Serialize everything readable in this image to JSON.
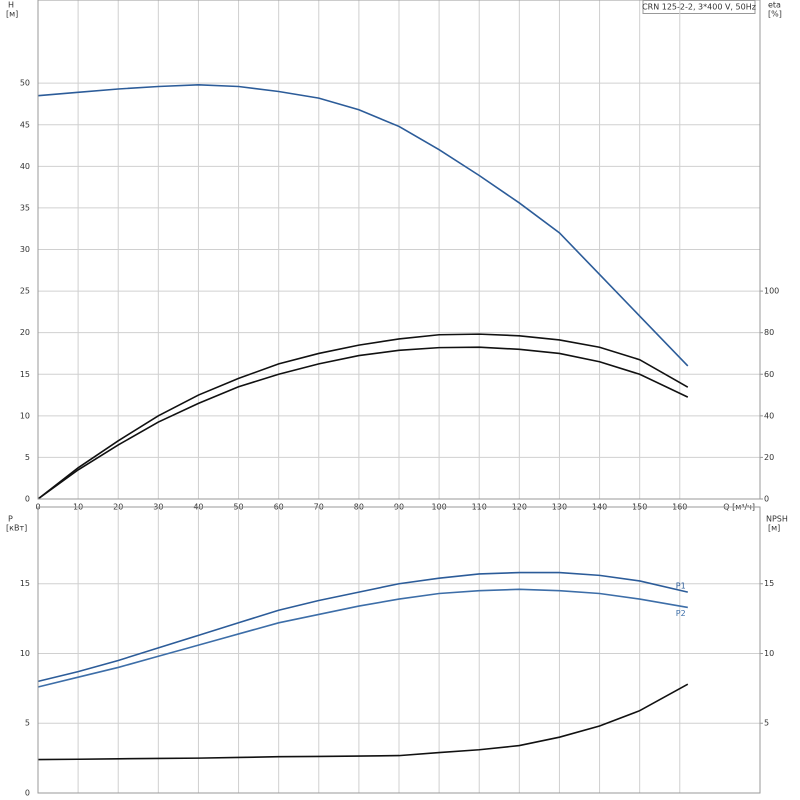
{
  "chart_data": [
    {
      "type": "line",
      "title": "CRN 125-2-2, 3*400 V, 50Hz",
      "ylabel": "H",
      "yunit": "[м]",
      "y2label": "eta",
      "y2unit": "[%]",
      "xlabel": "Q [м³/ч]",
      "xlim": [
        0,
        180
      ],
      "xticks": [
        0,
        10,
        20,
        30,
        40,
        50,
        60,
        70,
        80,
        90,
        100,
        110,
        120,
        130,
        140,
        150,
        160
      ],
      "show_xtick_labels": true,
      "ylim": [
        0,
        60
      ],
      "yticks": [
        0,
        5,
        10,
        15,
        20,
        25,
        30,
        35,
        40,
        45,
        50
      ],
      "y2lim": [
        0,
        240
      ],
      "y2ticks": [
        0,
        20,
        40,
        60,
        80,
        100
      ],
      "grid": true,
      "x": [
        0,
        10,
        20,
        30,
        40,
        50,
        60,
        70,
        80,
        90,
        100,
        110,
        120,
        130,
        140,
        150,
        162
      ],
      "series": [
        {
          "color": "#2c5c99",
          "axis": "y",
          "values": [
            48.5,
            48.9,
            49.3,
            49.6,
            49.8,
            49.6,
            49.0,
            48.2,
            46.8,
            44.8,
            42.0,
            38.9,
            35.6,
            32.0,
            27.0,
            22.0,
            16.0
          ]
        },
        {
          "color": "#111111",
          "axis": "y2",
          "values": [
            0,
            15,
            28,
            40,
            50,
            58,
            65,
            70,
            74,
            77,
            79,
            79.3,
            78.5,
            76.5,
            73,
            67,
            53.8
          ]
        },
        {
          "color": "#111111",
          "axis": "y2",
          "values": [
            0,
            14,
            26,
            37,
            46,
            54,
            60,
            65,
            69,
            71.5,
            72.8,
            73,
            72,
            70,
            66,
            60,
            49
          ]
        }
      ]
    },
    {
      "type": "line",
      "ylabel": "P",
      "yunit": "[кВт]",
      "y2label": "NPSH",
      "y2unit": "[м]",
      "xlim": [
        0,
        180
      ],
      "xticks": [
        0,
        10,
        20,
        30,
        40,
        50,
        60,
        70,
        80,
        90,
        100,
        110,
        120,
        130,
        140,
        150,
        160
      ],
      "show_xtick_labels": false,
      "ylim": [
        0,
        20.5
      ],
      "yticks": [
        0,
        5,
        10,
        15
      ],
      "y2lim": [
        0,
        20.5
      ],
      "y2ticks": [
        5,
        10,
        15
      ],
      "grid": true,
      "x": [
        0,
        10,
        20,
        30,
        40,
        50,
        60,
        70,
        80,
        90,
        100,
        110,
        120,
        130,
        140,
        150,
        162
      ],
      "series": [
        {
          "name": "P1",
          "color": "#2c5c99",
          "axis": "y",
          "values": [
            8.0,
            8.7,
            9.5,
            10.4,
            11.3,
            12.2,
            13.1,
            13.8,
            14.4,
            15.0,
            15.4,
            15.7,
            15.8,
            15.8,
            15.6,
            15.2,
            14.4
          ]
        },
        {
          "name": "P2",
          "color": "#3d6ea8",
          "axis": "y",
          "values": [
            7.6,
            8.3,
            9.0,
            9.8,
            10.6,
            11.4,
            12.2,
            12.8,
            13.4,
            13.9,
            14.3,
            14.5,
            14.6,
            14.5,
            14.3,
            13.9,
            13.3
          ]
        },
        {
          "color": "#111111",
          "axis": "y2",
          "values": [
            2.4,
            2.42,
            2.45,
            2.48,
            2.5,
            2.55,
            2.6,
            2.62,
            2.65,
            2.68,
            2.9,
            3.1,
            3.4,
            4.0,
            4.8,
            5.9,
            7.8
          ]
        }
      ]
    }
  ]
}
